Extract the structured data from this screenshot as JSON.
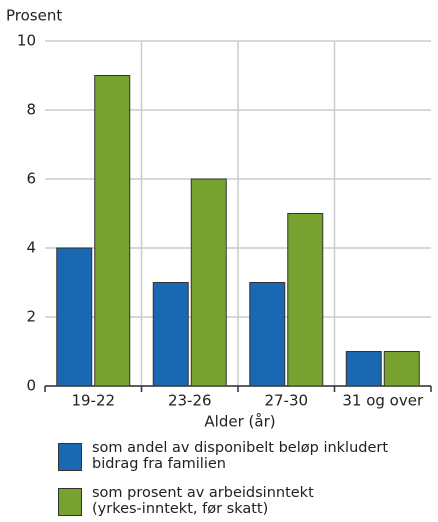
{
  "chart_data": {
    "type": "bar",
    "y_label": "Prosent",
    "x_label": "Alder (år)",
    "categories": [
      "19-22",
      "23-26",
      "27-30",
      "31 og over"
    ],
    "series": [
      {
        "name": "som andel av disponibelt beløp inkludert bidrag fra familien",
        "color": "#1a67b2",
        "values": [
          4,
          3,
          3,
          1
        ]
      },
      {
        "name": "som prosent av arbeidsinntekt (yrkes-inntekt, før skatt)",
        "color": "#78a22f",
        "values": [
          9,
          6,
          5,
          1
        ]
      }
    ],
    "ylim": [
      0,
      10
    ],
    "yticks": [
      0,
      2,
      4,
      6,
      8,
      10
    ],
    "grid": true
  }
}
